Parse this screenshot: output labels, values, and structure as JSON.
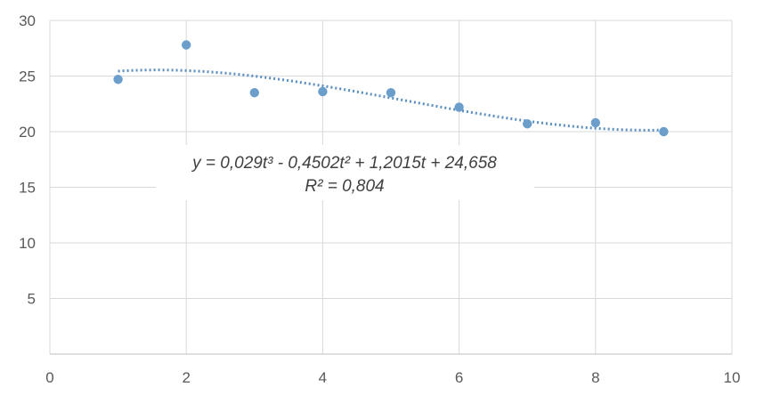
{
  "chart_data": {
    "type": "scatter",
    "xlim": [
      0,
      10
    ],
    "ylim": [
      0,
      30
    ],
    "x_ticks": [
      0,
      2,
      4,
      6,
      8,
      10
    ],
    "y_ticks": [
      5,
      10,
      15,
      20,
      25,
      30
    ],
    "grid": true,
    "series": [
      {
        "x": [
          1,
          2,
          3,
          4,
          5,
          6,
          7,
          8,
          9
        ],
        "y": [
          24.7,
          27.8,
          23.5,
          23.6,
          23.5,
          22.2,
          20.7,
          20.8,
          20.0
        ],
        "color": "#6b9ecb"
      }
    ],
    "trendline": {
      "type": "polynomial",
      "coefficients": [
        0.029,
        -0.4502,
        1.2015,
        24.658
      ],
      "x_range": [
        1,
        9
      ],
      "color": "#5a8fc0",
      "style": "dotted"
    },
    "annotations": {
      "equation": "y = 0,029t³ - 0,4502t² + 1,2015t + 24,658",
      "r_squared": "R² = 0,804"
    }
  }
}
